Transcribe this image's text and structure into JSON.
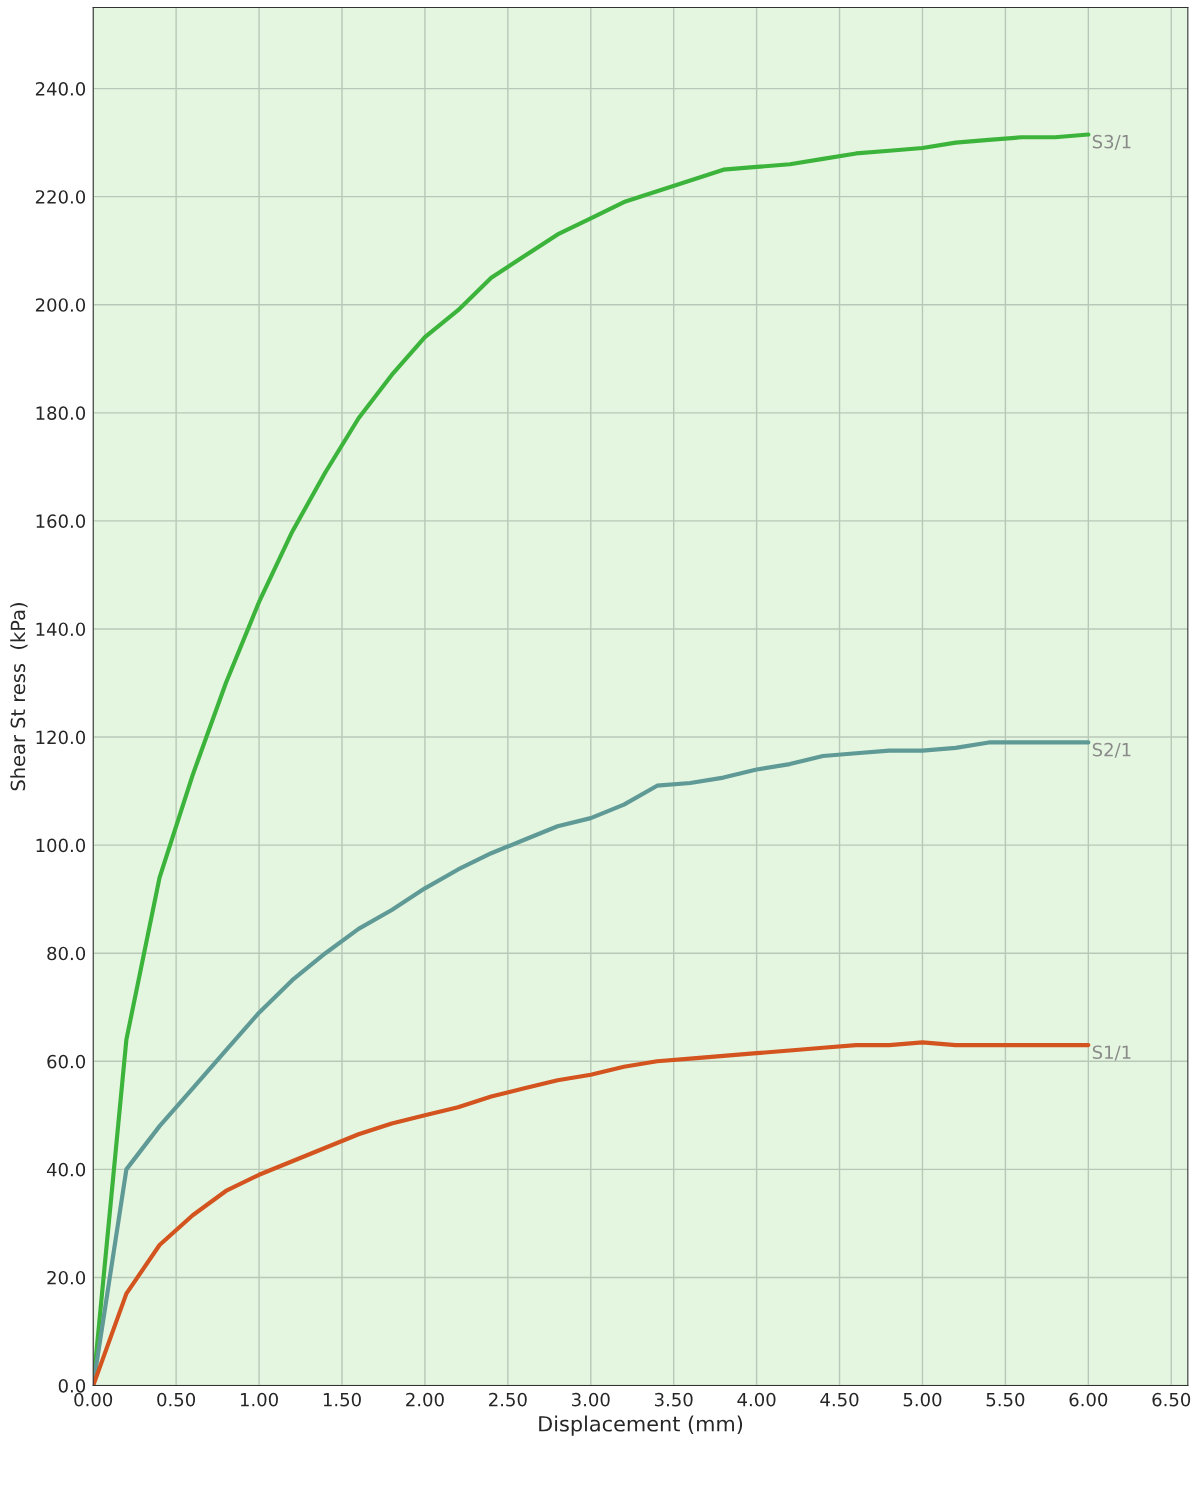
{
  "chart_data": {
    "type": "line",
    "xlabel": "Displacement (mm)",
    "ylabel": "Shear St ress  (kPa)",
    "xlim": [
      0,
      6.6
    ],
    "ylim": [
      0,
      255
    ],
    "xticks": [
      {
        "value": 0,
        "label": "0.00"
      },
      {
        "value": 0.5,
        "label": "0.50"
      },
      {
        "value": 1,
        "label": "1.00"
      },
      {
        "value": 1.5,
        "label": "1.50"
      },
      {
        "value": 2,
        "label": "2.00"
      },
      {
        "value": 2.5,
        "label": "2.50"
      },
      {
        "value": 3,
        "label": "3.00"
      },
      {
        "value": 3.5,
        "label": "3.50"
      },
      {
        "value": 4,
        "label": "4.00"
      },
      {
        "value": 4.5,
        "label": "4.50"
      },
      {
        "value": 5,
        "label": "5.00"
      },
      {
        "value": 5.5,
        "label": "5.50"
      },
      {
        "value": 6,
        "label": "6.00"
      },
      {
        "value": 6.5,
        "label": "6.50"
      }
    ],
    "yticks": [
      {
        "value": 0,
        "label": "0.0"
      },
      {
        "value": 20,
        "label": "20.0"
      },
      {
        "value": 40,
        "label": "40.0"
      },
      {
        "value": 60,
        "label": "60.0"
      },
      {
        "value": 80,
        "label": "80.0"
      },
      {
        "value": 100,
        "label": "100.0"
      },
      {
        "value": 120,
        "label": "120.0"
      },
      {
        "value": 140,
        "label": "140.0"
      },
      {
        "value": 160,
        "label": "160.0"
      },
      {
        "value": 180,
        "label": "180.0"
      },
      {
        "value": 200,
        "label": "200.0"
      },
      {
        "value": 220,
        "label": "220.0"
      },
      {
        "value": 240,
        "label": "240.0"
      }
    ],
    "x": [
      0,
      0.2,
      0.4,
      0.6,
      0.8,
      1.0,
      1.2,
      1.4,
      1.6,
      1.8,
      2.0,
      2.2,
      2.4,
      2.6,
      2.8,
      3.0,
      3.2,
      3.4,
      3.6,
      3.8,
      4.0,
      4.2,
      4.4,
      4.6,
      4.8,
      5.0,
      5.2,
      5.4,
      5.6,
      5.8,
      6.0
    ],
    "series": [
      {
        "name": "S3/1",
        "color": "#3cb43c",
        "values": [
          0,
          64,
          94,
          113,
          130,
          145,
          158,
          169,
          179,
          187,
          194,
          199,
          205,
          209,
          213,
          216,
          219,
          221,
          223,
          225,
          225.5,
          226,
          227,
          228,
          228.5,
          229,
          230,
          230.5,
          231,
          231,
          231.5
        ]
      },
      {
        "name": "S2/1",
        "color": "#5f9a96",
        "values": [
          0,
          40,
          48,
          55,
          62,
          69,
          75,
          80,
          84.5,
          88,
          92,
          95.5,
          98.5,
          101,
          103.5,
          105,
          107.5,
          111,
          111.5,
          112.5,
          114,
          115,
          116.5,
          117,
          117.5,
          117.5,
          118,
          119,
          119,
          119,
          119
        ]
      },
      {
        "name": "S1/1",
        "color": "#d4541f",
        "values": [
          0,
          17,
          26,
          31.5,
          36,
          39,
          41.5,
          44,
          46.5,
          48.5,
          50,
          51.5,
          53.5,
          55,
          56.5,
          57.5,
          59,
          60,
          60.5,
          61,
          61.5,
          62,
          62.5,
          63,
          63,
          63.5,
          63,
          63,
          63,
          63,
          63
        ]
      }
    ],
    "grid": true,
    "legend": false,
    "marker": "none",
    "line_style": "solid"
  }
}
